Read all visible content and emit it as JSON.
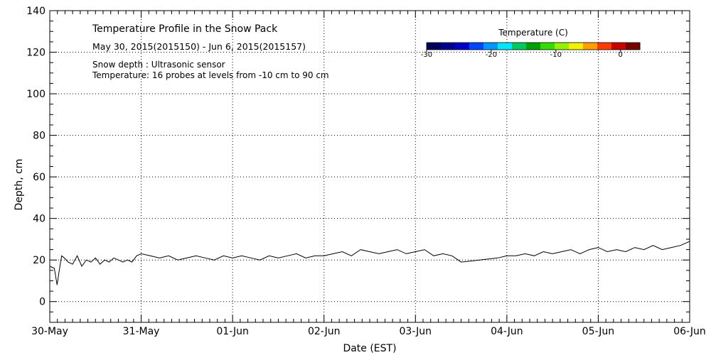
{
  "chart_data": {
    "type": "line",
    "title": "Temperature Profile in the Snow Pack",
    "subtitle": "May 30, 2015(2015150) - Jun  6, 2015(2015157)",
    "annotations": [
      "Snow depth : Ultrasonic sensor",
      "Temperature: 16 probes at levels from -10 cm to 90 cm"
    ],
    "xlabel": "Date (EST)",
    "ylabel": "Depth, cm",
    "x_tick_labels": [
      "30-May",
      "31-May",
      "01-Jun",
      "02-Jun",
      "03-Jun",
      "04-Jun",
      "05-Jun",
      "06-Jun"
    ],
    "xlim": [
      0,
      7
    ],
    "ylim": [
      -10,
      140
    ],
    "y_ticks": [
      0,
      20,
      40,
      60,
      80,
      100,
      120,
      140
    ],
    "grid": true,
    "colorbar": {
      "title": "Temperature (C)",
      "range": [
        -30,
        3
      ],
      "tick_values": [
        -30,
        -20,
        -10,
        0
      ],
      "tick_labels": [
        "-30",
        "-20",
        "-10",
        "0"
      ],
      "colors": [
        "#00005a",
        "#00008c",
        "#0000c8",
        "#0046ff",
        "#0096ff",
        "#00e6ff",
        "#00c864",
        "#00a000",
        "#32dc00",
        "#96f000",
        "#f0f000",
        "#ffa000",
        "#ff3c00",
        "#c80000",
        "#780000"
      ]
    },
    "series": [
      {
        "name": "Snow depth",
        "color": "#000000",
        "x": [
          0.0,
          0.05,
          0.08,
          0.1,
          0.13,
          0.16,
          0.2,
          0.25,
          0.3,
          0.35,
          0.4,
          0.45,
          0.5,
          0.55,
          0.6,
          0.65,
          0.7,
          0.75,
          0.8,
          0.85,
          0.9,
          0.95,
          1.0,
          1.1,
          1.2,
          1.3,
          1.4,
          1.5,
          1.6,
          1.7,
          1.8,
          1.9,
          2.0,
          2.1,
          2.2,
          2.3,
          2.4,
          2.5,
          2.6,
          2.7,
          2.8,
          2.9,
          3.0,
          3.1,
          3.2,
          3.3,
          3.4,
          3.5,
          3.6,
          3.7,
          3.8,
          3.9,
          4.0,
          4.1,
          4.2,
          4.3,
          4.4,
          4.5,
          4.6,
          4.7,
          4.8,
          4.9,
          5.0,
          5.1,
          5.2,
          5.3,
          5.4,
          5.5,
          5.6,
          5.7,
          5.8,
          5.9,
          6.0,
          6.1,
          6.2,
          6.3,
          6.4,
          6.5,
          6.6,
          6.7,
          6.8,
          6.9,
          7.0
        ],
        "y": [
          17,
          16,
          8,
          14,
          22,
          21,
          19,
          18,
          22,
          17,
          20,
          19,
          21,
          18,
          20,
          19,
          21,
          20,
          19,
          20,
          19,
          22,
          23,
          22,
          21,
          22,
          20,
          21,
          22,
          21,
          20,
          22,
          21,
          22,
          21,
          20,
          22,
          21,
          22,
          23,
          21,
          22,
          22,
          23,
          24,
          22,
          25,
          24,
          23,
          24,
          25,
          23,
          24,
          25,
          22,
          23,
          22,
          19,
          19.5,
          20,
          20.5,
          21,
          22,
          22,
          23,
          22,
          24,
          23,
          24,
          25,
          23,
          25,
          26,
          24,
          25,
          24,
          26,
          25,
          27,
          25,
          26,
          27,
          29
        ]
      }
    ]
  }
}
